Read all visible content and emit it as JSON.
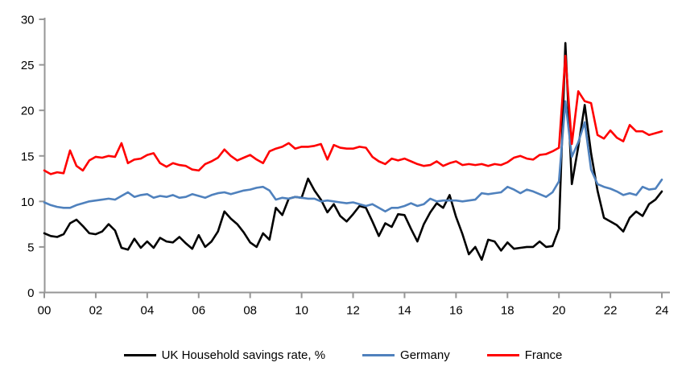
{
  "chart_data": {
    "type": "line",
    "title": "",
    "xlabel": "",
    "ylabel": "",
    "grid": false,
    "legend_position": "bottom",
    "x_start_year": 2000,
    "x_end_year": 2024,
    "x_frequency": "quarterly",
    "x_tick_labels": [
      "00",
      "02",
      "04",
      "06",
      "08",
      "10",
      "12",
      "14",
      "16",
      "18",
      "20",
      "22",
      "24"
    ],
    "y_ticks": [
      0,
      5,
      10,
      15,
      20,
      25,
      30
    ],
    "ylim": [
      0,
      30
    ],
    "axis_color": "#969696",
    "series": [
      {
        "name": "UK Household savings rate, %",
        "color": "#000000",
        "values": [
          6.5,
          6.2,
          6.1,
          6.4,
          7.6,
          8.0,
          7.3,
          6.5,
          6.4,
          6.7,
          7.5,
          6.8,
          4.9,
          4.7,
          5.9,
          4.9,
          5.6,
          4.9,
          6.0,
          5.6,
          5.5,
          6.1,
          5.4,
          4.8,
          6.3,
          5.0,
          5.6,
          6.7,
          8.9,
          8.1,
          7.5,
          6.6,
          5.5,
          5.0,
          6.5,
          5.8,
          9.3,
          8.5,
          10.3,
          10.5,
          10.4,
          12.5,
          11.2,
          10.2,
          8.8,
          9.7,
          8.4,
          7.8,
          8.6,
          9.5,
          9.3,
          7.8,
          6.2,
          7.6,
          7.2,
          8.6,
          8.5,
          7.0,
          5.6,
          7.5,
          8.8,
          9.8,
          9.3,
          10.7,
          8.3,
          6.4,
          4.2,
          5.0,
          3.6,
          5.8,
          5.6,
          4.6,
          5.5,
          4.8,
          4.9,
          5.0,
          5.0,
          5.6,
          5.0,
          5.1,
          7.0,
          27.4,
          11.9,
          16.0,
          20.6,
          15.3,
          11.2,
          8.2,
          7.8,
          7.4,
          6.7,
          8.2,
          8.9,
          8.4,
          9.7,
          10.2,
          11.1
        ]
      },
      {
        "name": "Germany",
        "color": "#4F81BD",
        "values": [
          9.9,
          9.6,
          9.4,
          9.3,
          9.3,
          9.6,
          9.8,
          10.0,
          10.1,
          10.2,
          10.3,
          10.2,
          10.6,
          11.0,
          10.5,
          10.7,
          10.8,
          10.4,
          10.6,
          10.5,
          10.7,
          10.4,
          10.5,
          10.8,
          10.6,
          10.4,
          10.7,
          10.9,
          11.0,
          10.8,
          11.0,
          11.2,
          11.3,
          11.5,
          11.6,
          11.2,
          10.2,
          10.4,
          10.3,
          10.5,
          10.4,
          10.3,
          10.3,
          10.0,
          10.1,
          10.0,
          9.9,
          9.8,
          9.9,
          9.7,
          9.5,
          9.7,
          9.3,
          8.9,
          9.3,
          9.3,
          9.5,
          9.8,
          9.5,
          9.7,
          10.3,
          10.0,
          10.1,
          10.1,
          10.1,
          10.0,
          10.1,
          10.2,
          10.9,
          10.8,
          10.9,
          11.0,
          11.6,
          11.3,
          10.9,
          11.3,
          11.1,
          10.8,
          10.5,
          11.0,
          12.2,
          21.0,
          14.9,
          16.5,
          18.7,
          13.5,
          11.9,
          11.6,
          11.4,
          11.1,
          10.7,
          10.9,
          10.7,
          11.6,
          11.3,
          11.4,
          12.4
        ]
      },
      {
        "name": "France",
        "color": "#FF0000",
        "values": [
          13.4,
          13.0,
          13.2,
          13.1,
          15.6,
          13.9,
          13.4,
          14.5,
          14.9,
          14.8,
          15.0,
          14.9,
          16.4,
          14.2,
          14.6,
          14.7,
          15.1,
          15.3,
          14.2,
          13.8,
          14.2,
          14.0,
          13.9,
          13.5,
          13.4,
          14.1,
          14.4,
          14.8,
          15.7,
          15.0,
          14.5,
          14.8,
          15.1,
          14.6,
          14.2,
          15.5,
          15.8,
          16.0,
          16.4,
          15.8,
          16.0,
          16.0,
          16.1,
          16.3,
          14.6,
          16.2,
          15.9,
          15.8,
          15.8,
          16.0,
          15.9,
          14.9,
          14.4,
          14.1,
          14.7,
          14.5,
          14.7,
          14.4,
          14.1,
          13.9,
          14.0,
          14.4,
          13.9,
          14.2,
          14.4,
          14.0,
          14.1,
          14.0,
          14.1,
          13.9,
          14.1,
          14.0,
          14.3,
          14.8,
          15.0,
          14.7,
          14.6,
          15.1,
          15.2,
          15.5,
          15.9,
          26.0,
          16.3,
          22.1,
          21.0,
          20.8,
          17.3,
          16.9,
          17.8,
          17.0,
          16.6,
          18.4,
          17.7,
          17.7,
          17.3,
          17.5,
          17.7
        ]
      }
    ]
  }
}
